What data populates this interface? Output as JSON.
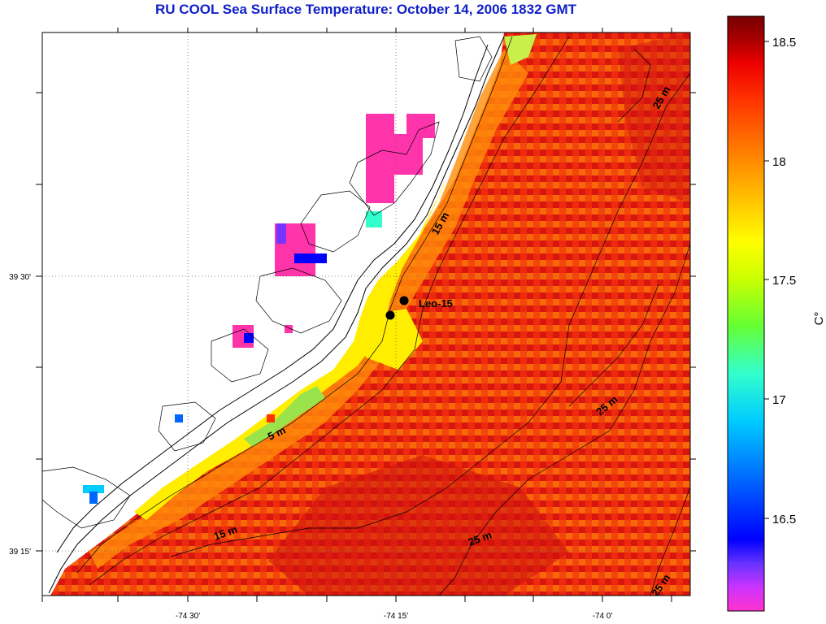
{
  "title": "RU COOL  Sea Surface Temperature:  October 14, 2006 1832 GMT",
  "axes": {
    "lon_ticks": [
      "-74 30'",
      "-74 15'",
      "-74 0'"
    ],
    "lat_ticks": [
      "39 30'",
      "39 15'"
    ]
  },
  "colorbar": {
    "unit": "C°",
    "ticks": [
      "18.5",
      "18",
      "17.5",
      "17",
      "16.5"
    ],
    "min": 16.1,
    "max": 18.6,
    "colors": [
      "#ff33cc",
      "#cc33ff",
      "#6633ff",
      "#0000ff",
      "#0066ff",
      "#00ccff",
      "#33ffcc",
      "#66ff33",
      "#ccff00",
      "#ffff00",
      "#ffcc00",
      "#ff9900",
      "#ff6600",
      "#ff3300",
      "#ee0000",
      "#aa0000",
      "#770000"
    ]
  },
  "contour_labels": [
    "5 m",
    "15 m",
    "15 m",
    "25 m",
    "25 m",
    "25 m",
    "25 m"
  ],
  "station": {
    "name": "Leo-15"
  }
}
